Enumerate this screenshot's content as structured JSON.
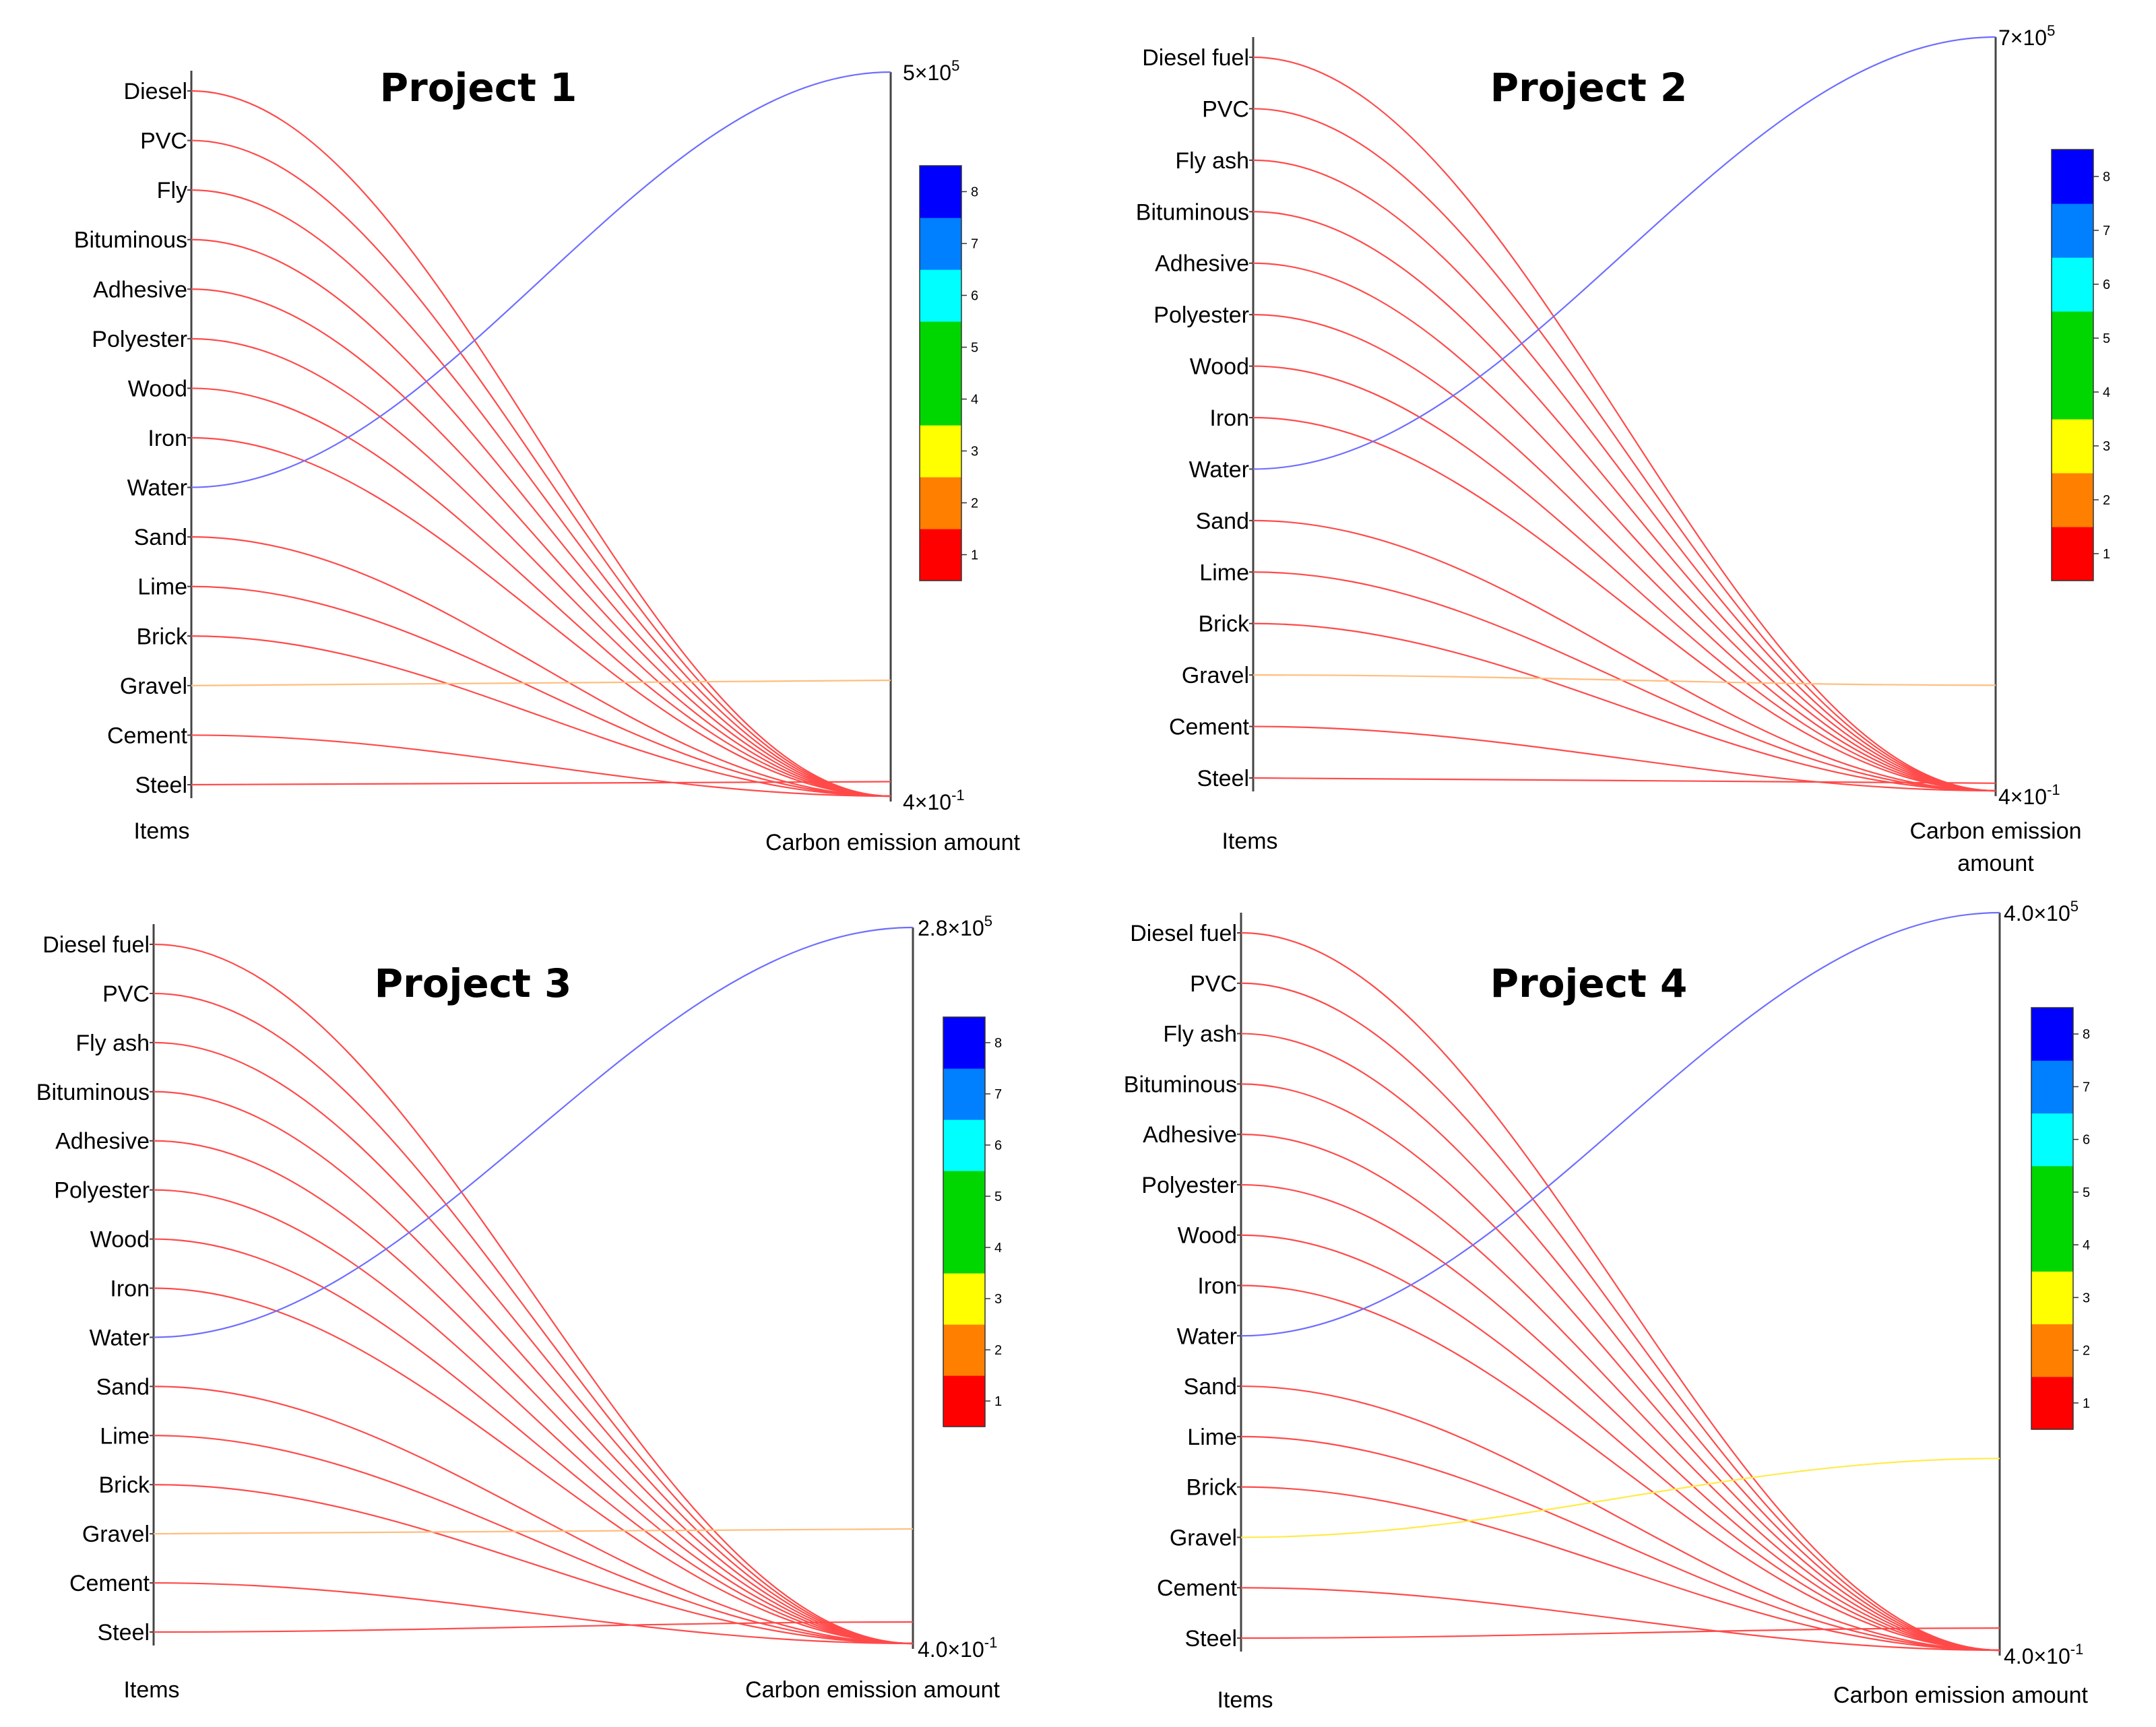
{
  "chart_data": [
    {
      "type": "parallel-coordinates",
      "title": "Project 1",
      "axis_labels": [
        "Items",
        "Carbon emission amount"
      ],
      "items": [
        "Diesel",
        "PVC",
        "Fly",
        "Bituminous",
        "Adhesive",
        "Polyester",
        "Wood",
        "Iron",
        "Water",
        "Sand",
        "Lime",
        "Brick",
        "Gravel",
        "Cement",
        "Steel"
      ],
      "max_label": {
        "mantissa": "5×10",
        "exp": "5"
      },
      "min_label": {
        "mantissa": "4×10",
        "exp": "-1"
      },
      "emission_level": [
        1,
        1,
        1,
        1,
        1,
        1,
        1,
        1,
        8,
        1,
        1,
        1,
        2,
        1,
        1
      ],
      "emission_norm": [
        0,
        0,
        0,
        0,
        0,
        0,
        0,
        0,
        1,
        0,
        0,
        0,
        0.16,
        0,
        0.02
      ]
    },
    {
      "type": "parallel-coordinates",
      "title": "Project 2",
      "axis_labels": [
        "Items",
        "Carbon emission amount"
      ],
      "items": [
        "Diesel fuel",
        "PVC",
        "Fly ash",
        "Bituminous",
        "Adhesive",
        "Polyester",
        "Wood",
        "Iron",
        "Water",
        "Sand",
        "Lime",
        "Brick",
        "Gravel",
        "Cement",
        "Steel"
      ],
      "max_label": {
        "mantissa": "7×10",
        "exp": "5"
      },
      "min_label": {
        "mantissa": "4×10",
        "exp": "-1"
      },
      "emission_level": [
        1,
        1,
        1,
        1,
        1,
        1,
        1,
        1,
        8,
        1,
        1,
        1,
        2,
        1,
        1
      ],
      "emission_norm": [
        0,
        0,
        0,
        0,
        0,
        0,
        0,
        0,
        1,
        0,
        0,
        0,
        0.14,
        0,
        0.01
      ]
    },
    {
      "type": "parallel-coordinates",
      "title": "Project 3",
      "axis_labels": [
        "Items",
        "Carbon emission amount"
      ],
      "items": [
        "Diesel fuel",
        "PVC",
        "Fly ash",
        "Bituminous",
        "Adhesive",
        "Polyester",
        "Wood",
        "Iron",
        "Water",
        "Sand",
        "Lime",
        "Brick",
        "Gravel",
        "Cement",
        "Steel"
      ],
      "max_label": {
        "mantissa": "2.8×10",
        "exp": "5"
      },
      "min_label": {
        "mantissa": "4.0×10",
        "exp": "-1"
      },
      "emission_level": [
        1,
        1,
        1,
        1,
        1,
        1,
        1,
        1,
        8,
        1,
        1,
        1,
        2,
        1,
        1
      ],
      "emission_norm": [
        0,
        0,
        0,
        0,
        0,
        0,
        0,
        0,
        1,
        0,
        0,
        0,
        0.16,
        0,
        0.03
      ]
    },
    {
      "type": "parallel-coordinates",
      "title": "Project 4",
      "axis_labels": [
        "Items",
        "Carbon emission amount"
      ],
      "items": [
        "Diesel fuel",
        "PVC",
        "Fly ash",
        "Bituminous",
        "Adhesive",
        "Polyester",
        "Wood",
        "Iron",
        "Water",
        "Sand",
        "Lime",
        "Brick",
        "Gravel",
        "Cement",
        "Steel"
      ],
      "max_label": {
        "mantissa": "4.0×10",
        "exp": "5"
      },
      "min_label": {
        "mantissa": "4.0×10",
        "exp": "-1"
      },
      "emission_level": [
        1,
        1,
        1,
        1,
        1,
        1,
        1,
        1,
        8,
        1,
        1,
        1,
        3,
        1,
        1
      ],
      "emission_norm": [
        0,
        0,
        0,
        0,
        0,
        0,
        0,
        0,
        1,
        0,
        0,
        0,
        0.26,
        0,
        0.03
      ]
    }
  ],
  "colorbar": {
    "ticks": [
      "1",
      "2",
      "3",
      "4",
      "5",
      "6",
      "7",
      "8"
    ],
    "colors": [
      "#ff0000",
      "#ff7f00",
      "#ffff00",
      "#00d600",
      "#00d600",
      "#00ffff",
      "#007fff",
      "#0000ff"
    ]
  },
  "line_colors": {
    "1": "#ff4a4a",
    "2": "#ffbe7d",
    "3": "#ffeb4a",
    "8": "#6e6eff"
  }
}
